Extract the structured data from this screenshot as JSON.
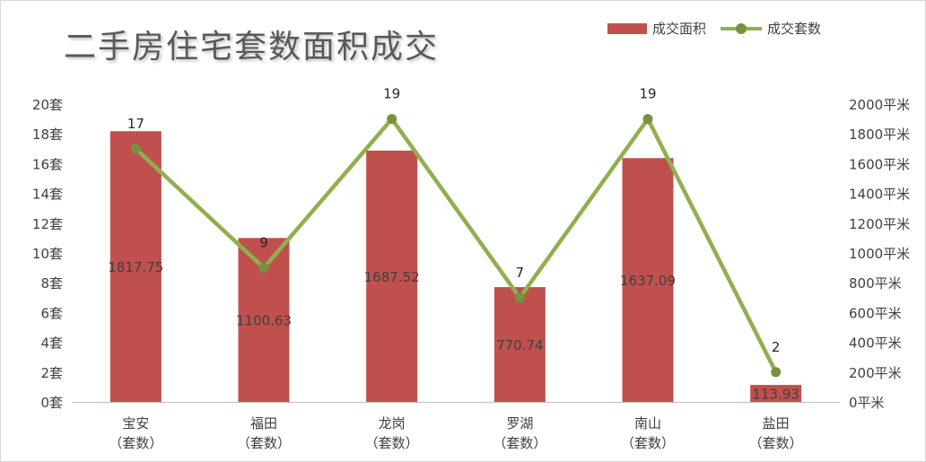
{
  "chart_data": {
    "type": "bar",
    "title": "二手房住宅套数面积成交",
    "categories": [
      "宝安\n（套数）",
      "福田\n（套数）",
      "龙岗\n（套数）",
      "罗湖\n（套数）",
      "南山\n（套数）",
      "盐田\n（套数）"
    ],
    "series": [
      {
        "name": "成交面积",
        "type": "bar",
        "axis": "right",
        "color": "#c0504d",
        "values": [
          1817.75,
          1100.63,
          1687.52,
          770.74,
          1637.09,
          113.93
        ]
      },
      {
        "name": "成交套数",
        "type": "line",
        "axis": "left",
        "color": "#8fb04e",
        "marker_color": "#76923c",
        "values": [
          17,
          9,
          19,
          7,
          19,
          2
        ]
      }
    ],
    "y_left": {
      "min": 0,
      "max": 20,
      "step": 2,
      "unit": "套"
    },
    "y_right": {
      "min": 0,
      "max": 2000,
      "step": 200,
      "unit": "平米"
    },
    "legend": "top-right",
    "grid": false
  }
}
